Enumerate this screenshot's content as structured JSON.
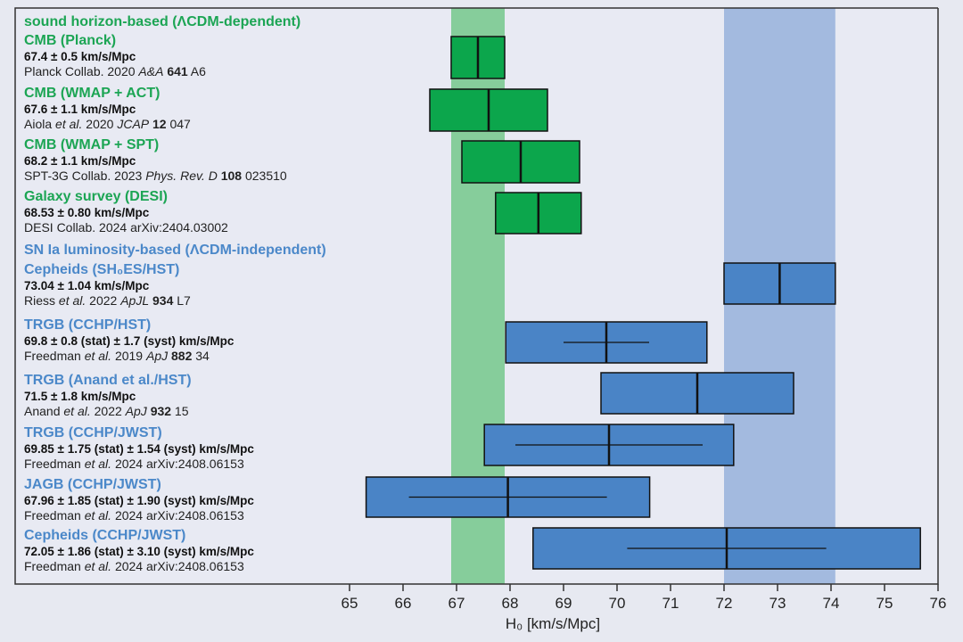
{
  "chart_data": {
    "type": "forest",
    "xlabel": "H₀ [km/s/Mpc]",
    "xlim": [
      65,
      76
    ],
    "xticks": [
      65,
      66,
      67,
      68,
      69,
      70,
      71,
      72,
      73,
      74,
      75,
      76
    ],
    "colors": {
      "green_box": "#0ca64c",
      "blue_box": "#4a84c6",
      "green_band": "#86cd9b",
      "blue_band": "#a3badf",
      "green_text": "#1ca554",
      "blue_text": "#4b88c9"
    },
    "bands": [
      {
        "range": [
          66.9,
          67.9
        ],
        "color": "green"
      },
      {
        "range": [
          72.0,
          74.08
        ],
        "color": "blue"
      }
    ],
    "groups": [
      {
        "heading": "sound horizon-based (ΛCDM-dependent)",
        "color": "green"
      },
      {
        "heading": "SN Ia luminosity-based (ΛCDM-independent)",
        "color": "blue"
      }
    ],
    "series": [
      {
        "group": 0,
        "title": "CMB (Planck)",
        "value_text": "67.4 ± 0.5 km/s/Mpc",
        "center": 67.4,
        "total_err": 0.5,
        "ref": [
          {
            "t": "Planck Collab. 2020 "
          },
          {
            "t": "A&A",
            "s": "it"
          },
          {
            "t": " "
          },
          {
            "t": "641",
            "s": "bd"
          },
          {
            "t": " A6"
          }
        ]
      },
      {
        "group": 0,
        "title": "CMB (WMAP + ACT)",
        "value_text": "67.6 ± 1.1 km/s/Mpc",
        "center": 67.6,
        "total_err": 1.1,
        "ref": [
          {
            "t": "Aiola "
          },
          {
            "t": "et al.",
            "s": "it"
          },
          {
            "t": " 2020 "
          },
          {
            "t": "JCAP",
            "s": "it"
          },
          {
            "t": " "
          },
          {
            "t": "12",
            "s": "bd"
          },
          {
            "t": " 047"
          }
        ]
      },
      {
        "group": 0,
        "title": "CMB (WMAP + SPT)",
        "value_text": "68.2 ± 1.1 km/s/Mpc",
        "center": 68.2,
        "total_err": 1.1,
        "ref": [
          {
            "t": "SPT-3G Collab. 2023 "
          },
          {
            "t": "Phys. Rev. D",
            "s": "it"
          },
          {
            "t": " "
          },
          {
            "t": "108",
            "s": "bd"
          },
          {
            "t": " 023510"
          }
        ]
      },
      {
        "group": 0,
        "title": "Galaxy survey (DESI)",
        "value_text": "68.53 ± 0.80 km/s/Mpc",
        "center": 68.53,
        "total_err": 0.8,
        "ref": [
          {
            "t": "DESI Collab. 2024 arXiv:2404.03002"
          }
        ]
      },
      {
        "group": 1,
        "title": "Cepheids (SH₀ES/HST)",
        "value_text": "73.04 ± 1.04 km/s/Mpc",
        "center": 73.04,
        "total_err": 1.04,
        "ref": [
          {
            "t": "Riess "
          },
          {
            "t": "et al.",
            "s": "it"
          },
          {
            "t": " 2022 "
          },
          {
            "t": "ApJL",
            "s": "it"
          },
          {
            "t": " "
          },
          {
            "t": "934",
            "s": "bd"
          },
          {
            "t": " L7"
          }
        ]
      },
      {
        "group": 1,
        "title": "TRGB (CCHP/HST)",
        "value_text": "69.8 ± 0.8 (stat) ± 1.7 (syst) km/s/Mpc",
        "center": 69.8,
        "stat_err": 0.8,
        "syst_err": 1.7,
        "total_err": 1.88,
        "ref": [
          {
            "t": "Freedman "
          },
          {
            "t": "et al.",
            "s": "it"
          },
          {
            "t": " 2019 "
          },
          {
            "t": "ApJ",
            "s": "it"
          },
          {
            "t": " "
          },
          {
            "t": "882",
            "s": "bd"
          },
          {
            "t": " 34"
          }
        ]
      },
      {
        "group": 1,
        "title": "TRGB (Anand et al./HST)",
        "value_text": "71.5 ± 1.8 km/s/Mpc",
        "center": 71.5,
        "total_err": 1.8,
        "ref": [
          {
            "t": "Anand "
          },
          {
            "t": "et al.",
            "s": "it"
          },
          {
            "t": " 2022 "
          },
          {
            "t": "ApJ",
            "s": "it"
          },
          {
            "t": " "
          },
          {
            "t": "932",
            "s": "bd"
          },
          {
            "t": " 15"
          }
        ]
      },
      {
        "group": 1,
        "title": "TRGB (CCHP/JWST)",
        "value_text": "69.85 ± 1.75 (stat) ± 1.54 (syst) km/s/Mpc",
        "center": 69.85,
        "stat_err": 1.75,
        "syst_err": 1.54,
        "total_err": 2.33,
        "ref": [
          {
            "t": "Freedman "
          },
          {
            "t": "et al.",
            "s": "it"
          },
          {
            "t": " 2024 arXiv:2408.06153"
          }
        ]
      },
      {
        "group": 1,
        "title": "JAGB (CCHP/JWST)",
        "value_text": "67.96 ± 1.85 (stat) ± 1.90 (syst) km/s/Mpc",
        "center": 67.96,
        "stat_err": 1.85,
        "syst_err": 1.9,
        "total_err": 2.65,
        "ref": [
          {
            "t": "Freedman "
          },
          {
            "t": "et al.",
            "s": "it"
          },
          {
            "t": " 2024 arXiv:2408.06153"
          }
        ]
      },
      {
        "group": 1,
        "title": "Cepheids (CCHP/JWST)",
        "value_text": "72.05 ± 1.86 (stat) ± 3.10 (syst) km/s/Mpc",
        "center": 72.05,
        "stat_err": 1.86,
        "syst_err": 3.1,
        "total_err": 3.62,
        "ref": [
          {
            "t": "Freedman "
          },
          {
            "t": "et al.",
            "s": "it"
          },
          {
            "t": " 2024 arXiv:2408.06153"
          }
        ]
      }
    ]
  }
}
